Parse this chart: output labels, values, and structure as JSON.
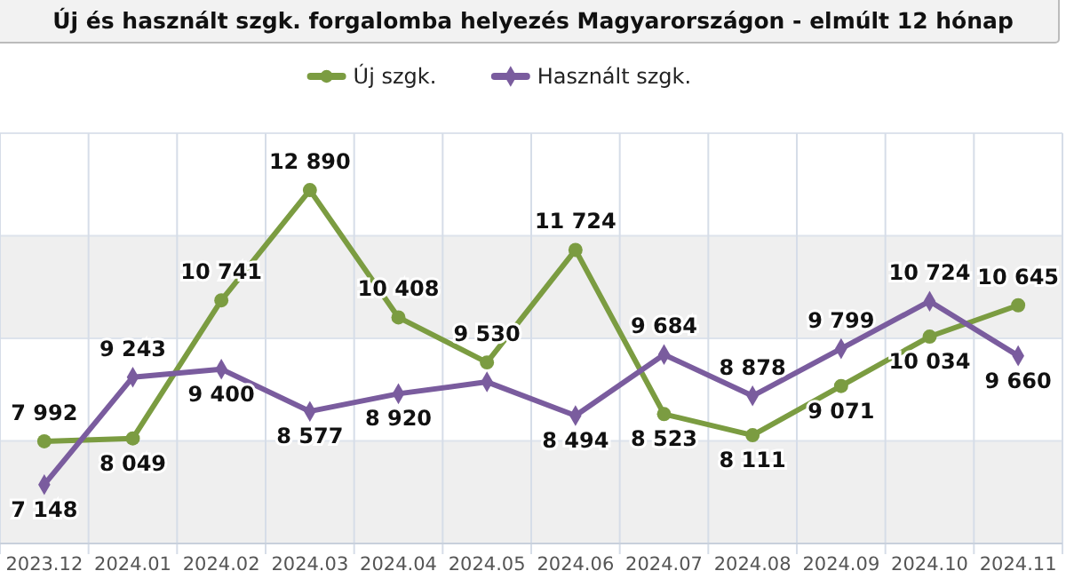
{
  "chart_data": {
    "type": "line",
    "title": "Új és használt szgk. forgalomba helyezés Magyarországon - elmúlt 12 hónap",
    "categories": [
      "2023.12",
      "2024.01",
      "2024.02",
      "2024.03",
      "2024.04",
      "2024.05",
      "2024.06",
      "2024.07",
      "2024.08",
      "2024.09",
      "2024.10",
      "2024.11"
    ],
    "series": [
      {
        "name": "Új szgk.",
        "color": "#7b9c41",
        "marker": "circle",
        "values": [
          7992,
          8049,
          10741,
          12890,
          10408,
          9530,
          11724,
          8523,
          8111,
          9071,
          10034,
          10645
        ],
        "value_labels": [
          "7 992",
          "8 049",
          "10 741",
          "12 890",
          "10 408",
          "9 530",
          "11 724",
          "8 523",
          "8 111",
          "9 071",
          "10 034",
          "10 645"
        ]
      },
      {
        "name": "Használt szgk.",
        "color": "#7a5c9e",
        "marker": "diamond",
        "values": [
          7148,
          9243,
          9400,
          8577,
          8920,
          9150,
          8494,
          9684,
          8878,
          9799,
          10724,
          9660
        ],
        "value_labels": [
          "7 148",
          "9 243",
          "9 400",
          "8 577",
          "8 920",
          null,
          "8 494",
          "9 684",
          "8 878",
          "9 799",
          "10 724",
          "9 660"
        ]
      }
    ],
    "ylim": [
      6000,
      14000
    ],
    "yticks": [
      {
        "value": 6000,
        "label": null
      },
      {
        "value": 8000,
        "label": null
      },
      {
        "value": 10000,
        "label": null
      },
      {
        "value": 12000,
        "label": null
      },
      {
        "value": 14000,
        "label": null
      }
    ],
    "tick_labels": "x",
    "grid": true,
    "legend": "top",
    "line_style": "solid"
  }
}
